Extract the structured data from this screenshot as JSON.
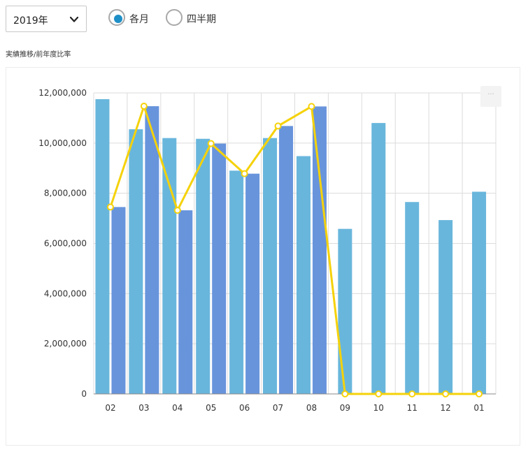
{
  "controls": {
    "year_value": "2019年",
    "period_options": [
      {
        "label": "各月",
        "selected": true
      },
      {
        "label": "四半期",
        "selected": false
      }
    ]
  },
  "section_label": "実績推移/前年度比率",
  "menu_button": {
    "label": "···"
  },
  "colors": {
    "bar_prev": "#69b6dc",
    "bar_curr": "#6894dc",
    "line": "#f5d20a",
    "grid": "#dcdcdc",
    "radio_dot": "#1e8fc7"
  },
  "chart_data": {
    "type": "bar",
    "title": "",
    "xlabel": "",
    "ylabel": "",
    "categories": [
      "02",
      "03",
      "04",
      "05",
      "06",
      "07",
      "08",
      "09",
      "10",
      "11",
      "12",
      "01"
    ],
    "ylim": [
      0,
      12000000
    ],
    "yticks": [
      {
        "value": 0,
        "label": "0"
      },
      {
        "value": 2000000,
        "label": "2,000,000"
      },
      {
        "value": 4000000,
        "label": "4,000,000"
      },
      {
        "value": 6000000,
        "label": "6,000,000"
      },
      {
        "value": 8000000,
        "label": "8,000,000"
      },
      {
        "value": 10000000,
        "label": "10,000,000"
      },
      {
        "value": 12000000,
        "label": "12,000,000"
      }
    ],
    "grid": true,
    "series": [
      {
        "type": "bar",
        "values": [
          11750000,
          10550000,
          10200000,
          10170000,
          8900000,
          10200000,
          9480000,
          6580000,
          10800000,
          7650000,
          6930000,
          8060000
        ]
      },
      {
        "type": "bar",
        "values": [
          7450000,
          11470000,
          7320000,
          9980000,
          8780000,
          10680000,
          11460000,
          null,
          null,
          null,
          null,
          null
        ]
      },
      {
        "type": "line",
        "values": [
          7450000,
          11470000,
          7320000,
          9980000,
          8780000,
          10680000,
          11460000,
          0,
          0,
          0,
          0,
          0
        ]
      }
    ]
  }
}
